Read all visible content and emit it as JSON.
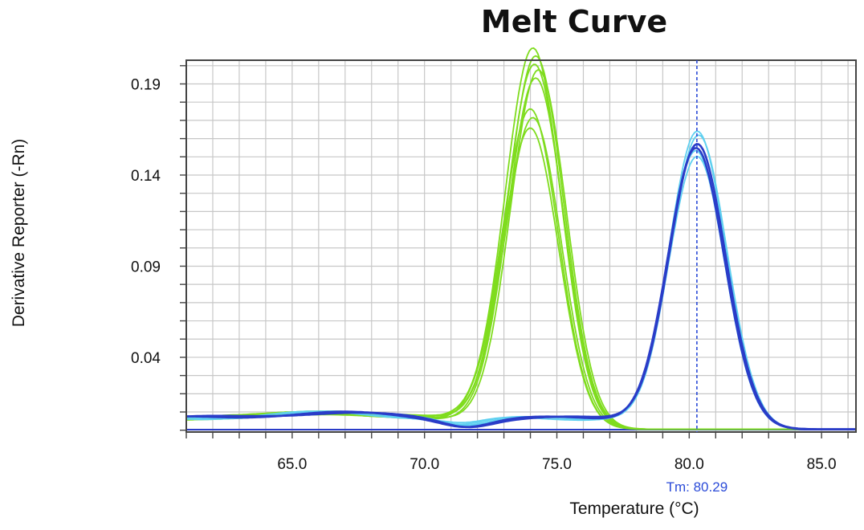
{
  "chart_data": {
    "type": "line",
    "title": "Melt Curve",
    "xlabel": "Temperature (°C)",
    "ylabel": "Derivative Reporter (-Rn)",
    "xlim": [
      61.0,
      86.3
    ],
    "ylim": [
      -0.001,
      0.203
    ],
    "xticks": [
      65.0,
      70.0,
      75.0,
      80.0,
      85.0
    ],
    "xtick_labels": [
      "65.0",
      "70.0",
      "75.0",
      "80.0",
      "85.0"
    ],
    "yticks": [
      0.04,
      0.09,
      0.14,
      0.19
    ],
    "ytick_labels": [
      "0.04",
      "0.09",
      "0.14",
      "0.19"
    ],
    "grid": true,
    "vline": {
      "x": 80.29,
      "label": "Tm: 80.29",
      "color": "#2b4bd8"
    },
    "series_groups": [
      {
        "color": "#7fdc1e",
        "curves": [
          {
            "peak": 0.204,
            "tm": 74.1
          },
          {
            "peak": 0.2,
            "tm": 74.2
          },
          {
            "peak": 0.195,
            "tm": 74.15
          },
          {
            "peak": 0.191,
            "tm": 74.3
          },
          {
            "peak": 0.186,
            "tm": 74.2
          },
          {
            "peak": 0.169,
            "tm": 74.0
          },
          {
            "peak": 0.165,
            "tm": 74.1
          },
          {
            "peak": 0.16,
            "tm": 74.0
          }
        ]
      },
      {
        "color": "#5fd0f0",
        "curves": [
          {
            "peak": 0.158,
            "tm": 80.3
          },
          {
            "peak": 0.155,
            "tm": 80.35
          },
          {
            "peak": 0.146,
            "tm": 80.25
          },
          {
            "peak": 0.143,
            "tm": 80.3
          }
        ]
      },
      {
        "color": "#2a3cc8",
        "curves": [
          {
            "peak": 0.151,
            "tm": 80.3
          },
          {
            "peak": 0.148,
            "tm": 80.25
          }
        ]
      }
    ]
  }
}
